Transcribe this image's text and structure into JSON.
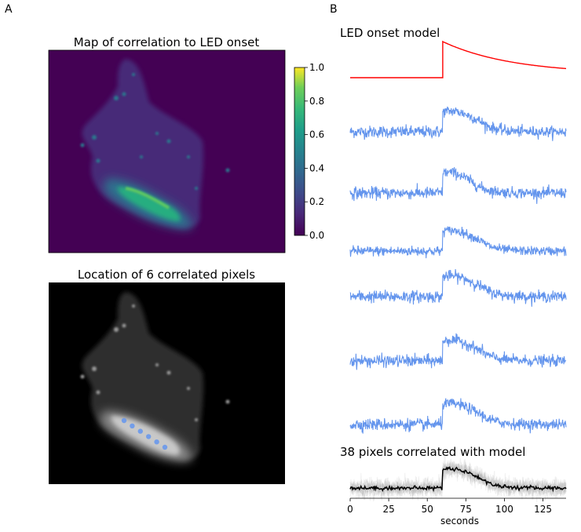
{
  "panels": {
    "a_label": "A",
    "b_label": "B"
  },
  "chart_data": [
    {
      "type": "heatmap",
      "title": "Map of correlation to LED onset",
      "colormap": "viridis",
      "colorbar": {
        "vmin": 0.0,
        "vmax": 1.0,
        "ticks": [
          "0.0",
          "0.2",
          "0.4",
          "0.6",
          "0.8",
          "1.0"
        ]
      }
    },
    {
      "type": "heatmap",
      "title": "Location of 6 correlated pixels",
      "colormap": "gray",
      "highlight_color": "#6495ed",
      "highlighted_pixel_count": 6
    },
    {
      "type": "line",
      "title": "LED onset model",
      "series": [
        {
          "color": "#ff0000",
          "onset_seconds": 60,
          "baseline": 0,
          "peak": 1,
          "end_level": 0.1
        }
      ]
    },
    {
      "type": "line",
      "series": [
        {
          "color": "#6495ed",
          "onset_seconds": 60,
          "peak": 1.0,
          "decay_end_seconds": 85,
          "noise": 0.12
        },
        {
          "color": "#6495ed",
          "onset_seconds": 60,
          "peak": 1.0,
          "decay_end_seconds": 80,
          "noise": 0.12
        },
        {
          "color": "#6495ed",
          "onset_seconds": 60,
          "peak": 1.0,
          "decay_end_seconds": 85,
          "noise": 0.1
        },
        {
          "color": "#6495ed",
          "onset_seconds": 60,
          "peak": 1.0,
          "decay_end_seconds": 85,
          "noise": 0.12
        },
        {
          "color": "#6495ed",
          "onset_seconds": 60,
          "peak": 1.0,
          "decay_end_seconds": 85,
          "noise": 0.12
        },
        {
          "color": "#6495ed",
          "onset_seconds": 60,
          "peak": 1.0,
          "decay_end_seconds": 85,
          "noise": 0.12
        }
      ]
    },
    {
      "type": "line",
      "title": "38 pixels correlated with model",
      "xlabel": "seconds",
      "x_ticks": [
        0,
        25,
        50,
        75,
        100,
        125
      ],
      "xlim": [
        0,
        140
      ],
      "mean_color": "#000000",
      "individual_color": "#b0b0b0",
      "pixel_count": 38
    }
  ]
}
